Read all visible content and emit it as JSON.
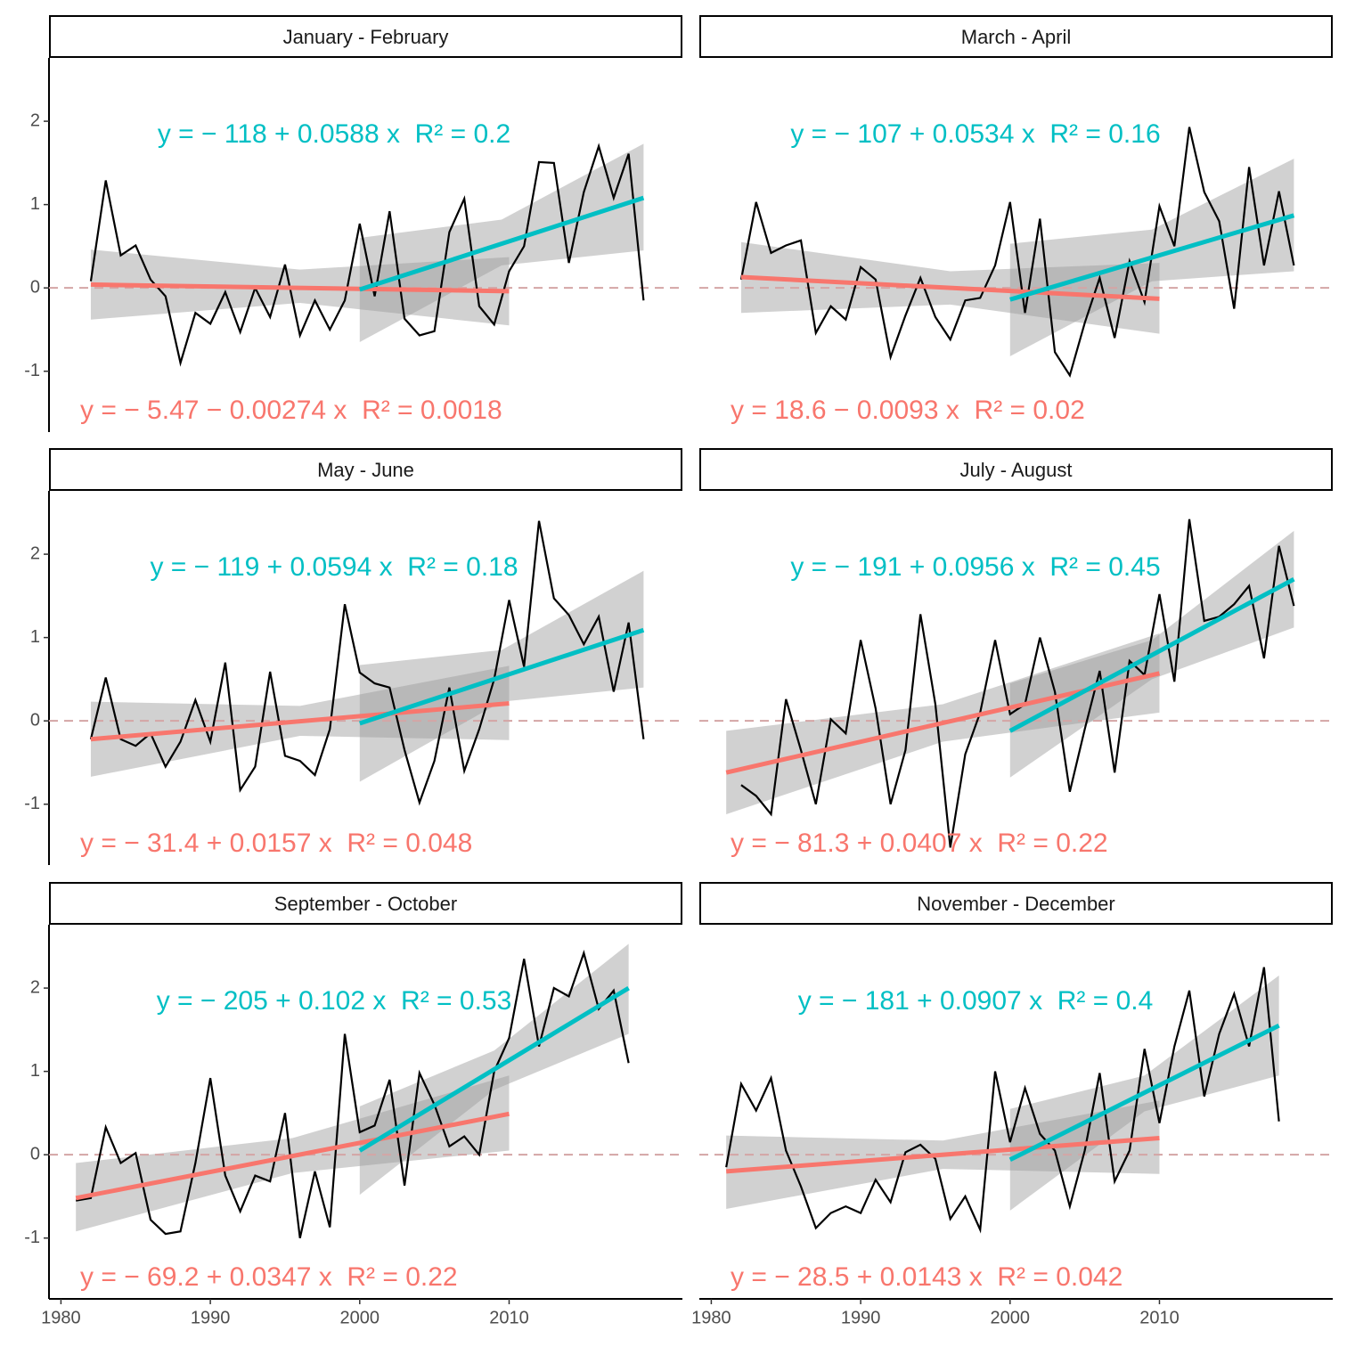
{
  "chart_data": {
    "type": "line",
    "xlim": [
      1979.2,
      2021.6
    ],
    "ylim": [
      -1.73,
      2.76
    ],
    "xticks": [
      1980,
      1990,
      2000,
      2010
    ],
    "yticks": [
      -1,
      0,
      1,
      2
    ],
    "line_color": "#000000",
    "colors": [
      "#F8766D",
      "#00BFC4"
    ],
    "band_color": "#999999",
    "ref_line": 0,
    "panels": [
      {
        "title": "January - February",
        "x": [
          1982,
          1983,
          1984,
          1985,
          1986,
          1987,
          1988,
          1989,
          1990,
          1991,
          1992,
          1993,
          1994,
          1995,
          1996,
          1997,
          1998,
          1999,
          2000,
          2001,
          2002,
          2003,
          2004,
          2005,
          2006,
          2007,
          2008,
          2009,
          2010,
          2011,
          2012,
          2013,
          2014,
          2015,
          2016,
          2017,
          2018,
          2019
        ],
        "values": [
          0.08,
          1.29,
          0.39,
          0.51,
          0.1,
          -0.1,
          -0.9,
          -0.3,
          -0.43,
          -0.05,
          -0.53,
          0.0,
          -0.35,
          0.28,
          -0.57,
          -0.15,
          -0.5,
          -0.15,
          0.77,
          -0.1,
          0.92,
          -0.37,
          -0.57,
          -0.52,
          0.67,
          1.07,
          -0.22,
          -0.44,
          0.2,
          0.5,
          1.51,
          1.5,
          0.3,
          1.15,
          1.7,
          1.08,
          1.61,
          -0.15
        ],
        "fits": [
          {
            "label": "y = − 5.47 − 0.00274 x  R² = 0.0018",
            "x": [
              1982,
              2010
            ],
            "y": [
              0.04,
              -0.04
            ],
            "band_x": [
              1982,
              1996,
              2010
            ],
            "band_lo": [
              -0.38,
              -0.18,
              -0.45
            ],
            "band_hi": [
              0.46,
              0.22,
              0.37
            ]
          },
          {
            "label": "y = − 118 + 0.0588 x  R² = 0.2",
            "x": [
              2000,
              2019
            ],
            "y": [
              -0.02,
              1.08
            ],
            "band_x": [
              2000,
              2009.5,
              2019
            ],
            "band_lo": [
              -0.65,
              0.27,
              0.45
            ],
            "band_hi": [
              0.6,
              0.82,
              1.73
            ]
          }
        ]
      },
      {
        "title": "March - April",
        "x": [
          1982,
          1983,
          1984,
          1985,
          1986,
          1987,
          1988,
          1989,
          1990,
          1991,
          1992,
          1993,
          1994,
          1995,
          1996,
          1997,
          1998,
          1999,
          2000,
          2001,
          2002,
          2003,
          2004,
          2005,
          2006,
          2007,
          2008,
          2009,
          2010,
          2011,
          2012,
          2013,
          2014,
          2015,
          2016,
          2017,
          2018,
          2019
        ],
        "values": [
          0.1,
          1.03,
          0.42,
          0.51,
          0.57,
          -0.54,
          -0.22,
          -0.38,
          0.25,
          0.1,
          -0.83,
          -0.33,
          0.12,
          -0.35,
          -0.62,
          -0.15,
          -0.12,
          0.27,
          1.03,
          -0.3,
          0.83,
          -0.77,
          -1.05,
          -0.42,
          0.12,
          -0.6,
          0.32,
          -0.17,
          0.98,
          0.5,
          1.93,
          1.15,
          0.8,
          -0.25,
          1.45,
          0.27,
          1.16,
          0.27
        ],
        "fits": [
          {
            "label": "y = 18.6 − 0.0093 x  R² = 0.02",
            "x": [
              1982,
              2010
            ],
            "y": [
              0.13,
              -0.13
            ],
            "band_x": [
              1982,
              1996,
              2010
            ],
            "band_lo": [
              -0.3,
              -0.2,
              -0.55
            ],
            "band_hi": [
              0.55,
              0.2,
              0.3
            ]
          },
          {
            "label": "y = − 107 + 0.0534 x  R² = 0.16",
            "x": [
              2000,
              2019
            ],
            "y": [
              -0.14,
              0.87
            ],
            "band_x": [
              2000,
              2009.5,
              2019
            ],
            "band_lo": [
              -0.82,
              0.08,
              0.2
            ],
            "band_hi": [
              0.53,
              0.7,
              1.55
            ]
          }
        ]
      },
      {
        "title": "May - June",
        "x": [
          1982,
          1983,
          1984,
          1985,
          1986,
          1987,
          1988,
          1989,
          1990,
          1991,
          1992,
          1993,
          1994,
          1995,
          1996,
          1997,
          1998,
          1999,
          2000,
          2001,
          2002,
          2003,
          2004,
          2005,
          2006,
          2007,
          2008,
          2009,
          2010,
          2011,
          2012,
          2013,
          2014,
          2015,
          2016,
          2017,
          2018,
          2019
        ],
        "values": [
          -0.22,
          0.52,
          -0.22,
          -0.3,
          -0.15,
          -0.55,
          -0.25,
          0.25,
          -0.25,
          0.7,
          -0.83,
          -0.55,
          0.59,
          -0.42,
          -0.48,
          -0.65,
          -0.1,
          1.4,
          0.58,
          0.45,
          0.4,
          -0.35,
          -0.98,
          -0.48,
          0.4,
          -0.6,
          -0.1,
          0.5,
          1.45,
          0.65,
          2.4,
          1.47,
          1.27,
          0.92,
          1.25,
          0.35,
          1.18,
          -0.22
        ],
        "fits": [
          {
            "label": "y = − 31.4 + 0.0157 x  R² = 0.048",
            "x": [
              1982,
              2010
            ],
            "y": [
              -0.22,
              0.21
            ],
            "band_x": [
              1982,
              1996,
              2010
            ],
            "band_lo": [
              -0.67,
              -0.18,
              -0.23
            ],
            "band_hi": [
              0.23,
              0.18,
              0.66
            ]
          },
          {
            "label": "y = − 119 + 0.0594 x  R² = 0.18",
            "x": [
              2000,
              2019
            ],
            "y": [
              -0.03,
              1.09
            ],
            "band_x": [
              2000,
              2009.5,
              2019
            ],
            "band_lo": [
              -0.73,
              0.23,
              0.4
            ],
            "band_hi": [
              0.67,
              0.85,
              1.8
            ]
          }
        ]
      },
      {
        "title": "July - August",
        "x": [
          1982,
          1983,
          1984,
          1985,
          1986,
          1987,
          1988,
          1989,
          1990,
          1991,
          1992,
          1993,
          1994,
          1995,
          1996,
          1997,
          1998,
          1999,
          2000,
          2001,
          2002,
          2003,
          2004,
          2005,
          2006,
          2007,
          2008,
          2009,
          2010,
          2011,
          2012,
          2013,
          2014,
          2015,
          2016,
          2017,
          2018,
          2019
        ],
        "values": [
          -0.77,
          -0.9,
          -1.12,
          0.26,
          -0.35,
          -1.0,
          0.02,
          -0.15,
          0.97,
          0.15,
          -1.0,
          -0.35,
          1.28,
          0.2,
          -1.52,
          -0.4,
          0.1,
          0.97,
          0.08,
          0.2,
          1.0,
          0.35,
          -0.85,
          -0.1,
          0.6,
          -0.62,
          0.72,
          0.55,
          1.52,
          0.47,
          2.42,
          1.2,
          1.25,
          1.4,
          1.62,
          0.75,
          2.1,
          1.38
        ],
        "fits": [
          {
            "label": "y = − 81.3 + 0.0407 x  R² = 0.22",
            "x": [
              1981,
              2010
            ],
            "y": [
              -0.62,
              0.57
            ],
            "band_x": [
              1981,
              1995.5,
              2010
            ],
            "band_lo": [
              -1.12,
              -0.25,
              0.1
            ],
            "band_hi": [
              -0.12,
              0.2,
              1.05
            ]
          },
          {
            "label": "y = − 191 + 0.0956 x  R² = 0.45",
            "x": [
              2000,
              2019
            ],
            "y": [
              -0.12,
              1.7
            ],
            "band_x": [
              2000,
              2009.5,
              2019
            ],
            "band_lo": [
              -0.68,
              0.5,
              1.12
            ],
            "band_hi": [
              0.45,
              0.97,
              2.28
            ]
          }
        ]
      },
      {
        "title": "September - October",
        "x": [
          1981,
          1982,
          1983,
          1984,
          1985,
          1986,
          1987,
          1988,
          1989,
          1990,
          1991,
          1992,
          1993,
          1994,
          1995,
          1996,
          1997,
          1998,
          1999,
          2000,
          2001,
          2002,
          2003,
          2004,
          2005,
          2006,
          2007,
          2008,
          2009,
          2010,
          2011,
          2012,
          2013,
          2014,
          2015,
          2016,
          2017,
          2018
        ],
        "values": [
          -0.55,
          -0.52,
          0.33,
          -0.1,
          0.02,
          -0.78,
          -0.95,
          -0.92,
          -0.1,
          0.92,
          -0.25,
          -0.68,
          -0.25,
          -0.32,
          0.5,
          -1.0,
          -0.2,
          -0.87,
          1.45,
          0.27,
          0.35,
          0.9,
          -0.37,
          0.98,
          0.6,
          0.1,
          0.22,
          0.0,
          1.0,
          1.4,
          2.35,
          1.3,
          2.0,
          1.9,
          2.42,
          1.75,
          1.97,
          1.1
        ],
        "fits": [
          {
            "label": "y = − 69.2 + 0.0347 x  R² = 0.22",
            "x": [
              1981,
              2010
            ],
            "y": [
              -0.52,
              0.49
            ],
            "band_x": [
              1981,
              1995.5,
              2010
            ],
            "band_lo": [
              -0.92,
              -0.22,
              0.05
            ],
            "band_hi": [
              -0.1,
              0.2,
              0.95
            ]
          },
          {
            "label": "y = − 205 + 0.102 x  R² = 0.53",
            "x": [
              2000,
              2018
            ],
            "y": [
              0.05,
              2.0
            ],
            "band_x": [
              2000,
              2009,
              2018
            ],
            "band_lo": [
              -0.48,
              0.78,
              1.45
            ],
            "band_hi": [
              0.58,
              1.25,
              2.53
            ]
          }
        ]
      },
      {
        "title": "November - December",
        "x": [
          1981,
          1982,
          1983,
          1984,
          1985,
          1986,
          1987,
          1988,
          1989,
          1990,
          1991,
          1992,
          1993,
          1994,
          1995,
          1996,
          1997,
          1998,
          1999,
          2000,
          2001,
          2002,
          2003,
          2004,
          2005,
          2006,
          2007,
          2008,
          2009,
          2010,
          2011,
          2012,
          2013,
          2014,
          2015,
          2016,
          2017,
          2018
        ],
        "values": [
          -0.15,
          0.85,
          0.53,
          0.92,
          0.05,
          -0.38,
          -0.88,
          -0.7,
          -0.62,
          -0.7,
          -0.3,
          -0.57,
          0.03,
          0.12,
          -0.05,
          -0.77,
          -0.5,
          -0.9,
          1.0,
          0.15,
          0.8,
          0.25,
          0.05,
          -0.62,
          0.05,
          0.98,
          -0.32,
          0.05,
          1.27,
          0.38,
          1.3,
          1.97,
          0.7,
          1.45,
          1.93,
          1.3,
          2.25,
          0.4
        ],
        "fits": [
          {
            "label": "y = − 28.5 + 0.0143 x  R² = 0.042",
            "x": [
              1981,
              2010
            ],
            "y": [
              -0.2,
              0.2
            ],
            "band_x": [
              1981,
              1995.5,
              2010
            ],
            "band_lo": [
              -0.65,
              -0.17,
              -0.23
            ],
            "band_hi": [
              0.23,
              0.17,
              0.65
            ]
          },
          {
            "label": "y = − 181 + 0.0907 x  R² = 0.4",
            "x": [
              2000,
              2018
            ],
            "y": [
              -0.06,
              1.55
            ],
            "band_x": [
              2000,
              2009,
              2018
            ],
            "band_lo": [
              -0.67,
              0.52,
              0.95
            ],
            "band_hi": [
              0.55,
              0.95,
              2.15
            ]
          }
        ]
      }
    ]
  }
}
